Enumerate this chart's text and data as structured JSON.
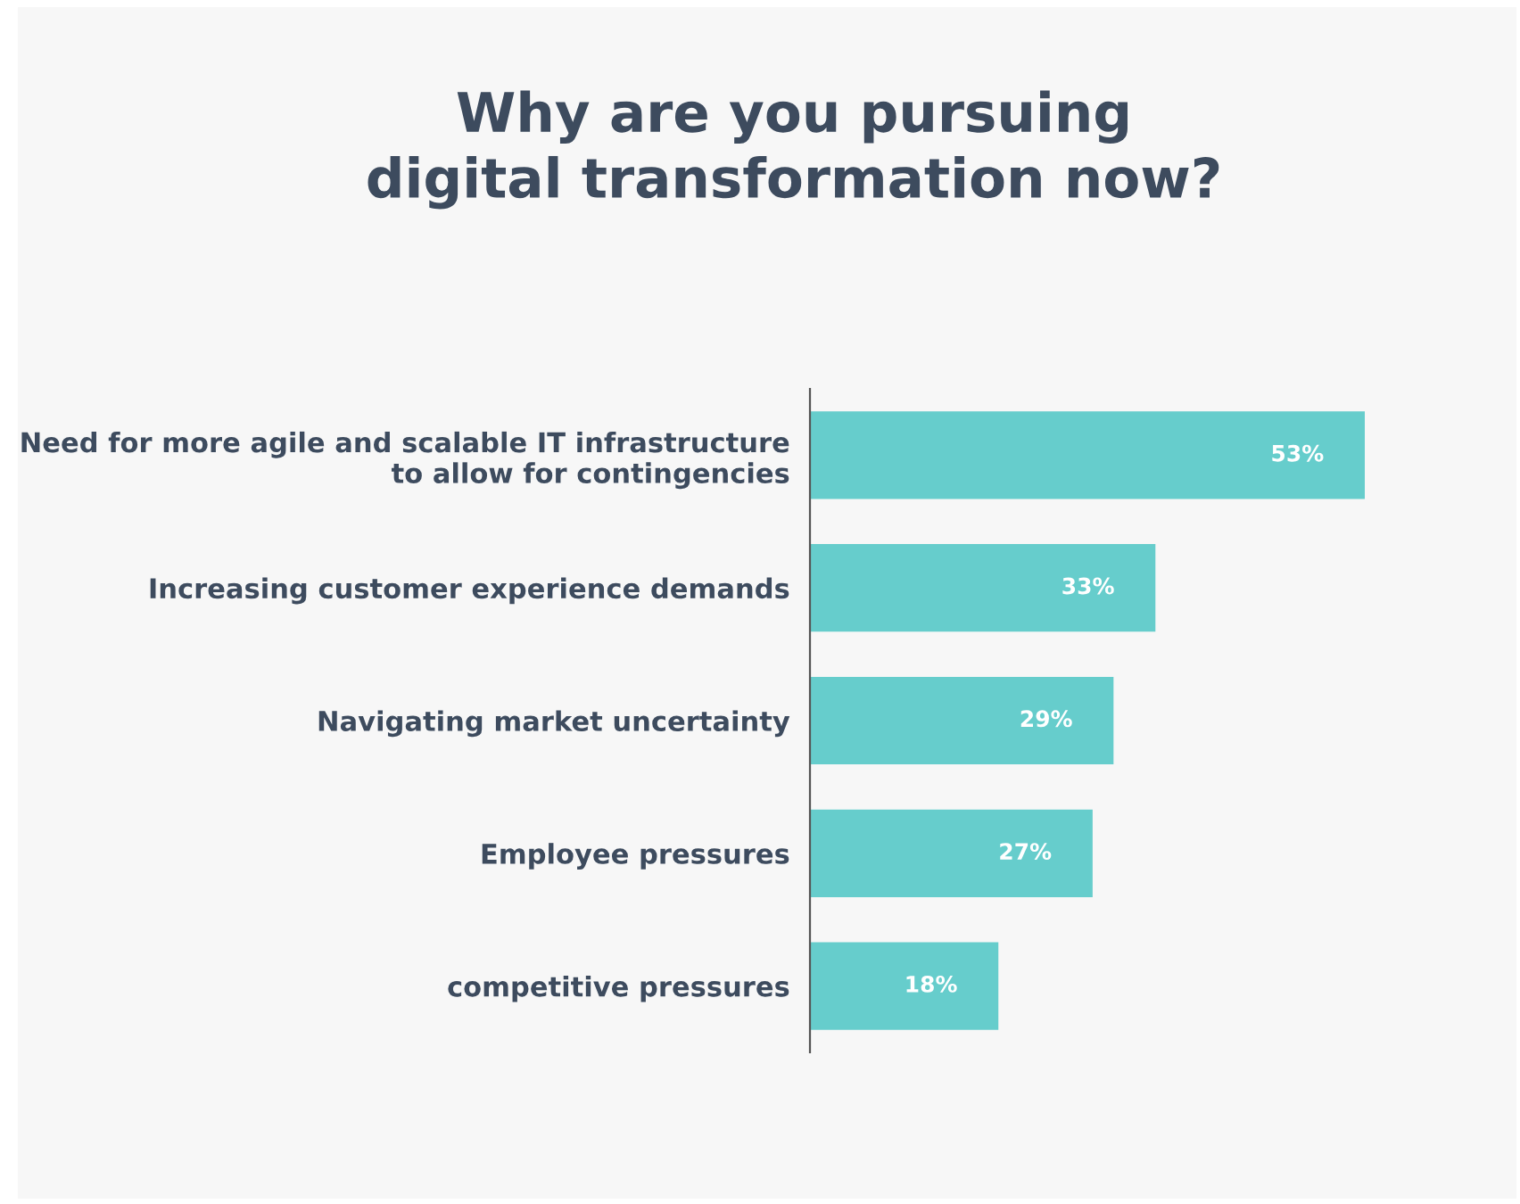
{
  "chart_data": {
    "type": "bar",
    "orientation": "horizontal",
    "title": "Why are you pursuing\ndigital transformation now?",
    "categories": [
      "Need for more agile and scalable IT infrastructure\nto allow for contingencies",
      "Increasing customer experience demands",
      "Navigating market uncertainty",
      "Employee pressures",
      "competitive pressures"
    ],
    "values": [
      53,
      33,
      29,
      27,
      18
    ],
    "value_labels": [
      "53%",
      "33%",
      "29%",
      "27%",
      "18%"
    ],
    "color": "#66cdcc"
  }
}
